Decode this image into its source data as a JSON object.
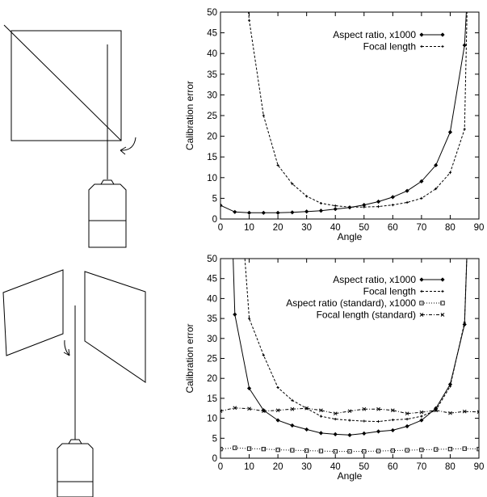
{
  "chart_data": [
    {
      "type": "line",
      "xlabel": "Angle",
      "ylabel": "Calibration error",
      "xlim": [
        0,
        90
      ],
      "ylim": [
        0,
        50
      ],
      "xticks": [
        0,
        10,
        20,
        30,
        40,
        50,
        60,
        70,
        80,
        90
      ],
      "yticks": [
        0,
        5,
        10,
        15,
        20,
        25,
        30,
        35,
        40,
        45,
        50
      ],
      "legend_position": "top-right",
      "series": [
        {
          "name": "Aspect ratio, x1000",
          "style": "solid",
          "marker": "diamond",
          "x": [
            0,
            5,
            10,
            15,
            20,
            25,
            30,
            35,
            40,
            45,
            50,
            55,
            60,
            65,
            70,
            75,
            80,
            85,
            86
          ],
          "y": [
            3.3,
            1.7,
            1.5,
            1.5,
            1.5,
            1.6,
            1.8,
            2.0,
            2.4,
            2.8,
            3.4,
            4.2,
            5.3,
            6.8,
            9.1,
            13.0,
            21.0,
            42.0,
            55
          ]
        },
        {
          "name": "Focal length",
          "style": "dashed",
          "marker": "small-plus",
          "x": [
            9,
            10,
            15,
            20,
            25,
            30,
            35,
            40,
            45,
            50,
            55,
            60,
            65,
            70,
            75,
            80,
            85,
            86
          ],
          "y": [
            55,
            48.0,
            25.0,
            13.0,
            8.5,
            5.5,
            3.8,
            3.2,
            2.9,
            2.9,
            3.0,
            3.4,
            4.0,
            5.0,
            7.3,
            11.2,
            21.7,
            55
          ]
        }
      ]
    },
    {
      "type": "line",
      "xlabel": "Angle",
      "ylabel": "Calibration error",
      "xlim": [
        0,
        90
      ],
      "ylim": [
        0,
        50
      ],
      "xticks": [
        0,
        10,
        20,
        30,
        40,
        50,
        60,
        70,
        80,
        90
      ],
      "yticks": [
        0,
        5,
        10,
        15,
        20,
        25,
        30,
        35,
        40,
        45,
        50
      ],
      "legend_position": "top-right",
      "series": [
        {
          "name": "Aspect ratio, x1000",
          "style": "solid",
          "marker": "diamond",
          "x": [
            4.2,
            5,
            10,
            15,
            20,
            25,
            30,
            35,
            40,
            45,
            50,
            55,
            60,
            65,
            70,
            75,
            80,
            85,
            86
          ],
          "y": [
            55,
            36.0,
            17.5,
            12.0,
            9.5,
            8.2,
            7.2,
            6.3,
            6.0,
            5.8,
            6.2,
            6.7,
            7.0,
            8.0,
            9.5,
            12.5,
            18.5,
            33.5,
            55
          ]
        },
        {
          "name": "Focal length",
          "style": "dashed",
          "marker": "small-plus",
          "x": [
            8,
            10,
            15,
            20,
            25,
            30,
            35,
            40,
            45,
            50,
            55,
            60,
            65,
            70,
            75,
            80,
            85,
            86
          ],
          "y": [
            55,
            35.0,
            25.8,
            17.7,
            14.5,
            12.5,
            10.5,
            9.8,
            9.5,
            9.3,
            9.2,
            9.6,
            9.8,
            10.5,
            12.0,
            18.0,
            34.0,
            55
          ]
        },
        {
          "name": "Aspect ratio (standard), x1000",
          "style": "dotted",
          "marker": "square",
          "x": [
            0,
            5,
            10,
            15,
            20,
            25,
            30,
            35,
            40,
            45,
            50,
            55,
            60,
            65,
            70,
            75,
            80,
            85,
            90
          ],
          "y": [
            2.3,
            2.6,
            2.4,
            2.3,
            2.1,
            2.0,
            1.9,
            1.8,
            1.7,
            1.7,
            1.7,
            1.8,
            1.9,
            2.0,
            2.1,
            2.2,
            2.3,
            2.4,
            2.3
          ]
        },
        {
          "name": "Focal length (standard)",
          "style": "dash-dot",
          "marker": "x",
          "x": [
            0,
            5,
            10,
            15,
            20,
            25,
            30,
            35,
            40,
            45,
            50,
            55,
            60,
            65,
            70,
            75,
            80,
            85,
            90
          ],
          "y": [
            11.8,
            12.6,
            12.4,
            11.8,
            12.0,
            12.3,
            12.5,
            12.0,
            11.2,
            11.8,
            12.3,
            12.3,
            12.0,
            11.2,
            11.5,
            12.0,
            11.3,
            11.7,
            11.6
          ]
        }
      ]
    }
  ]
}
